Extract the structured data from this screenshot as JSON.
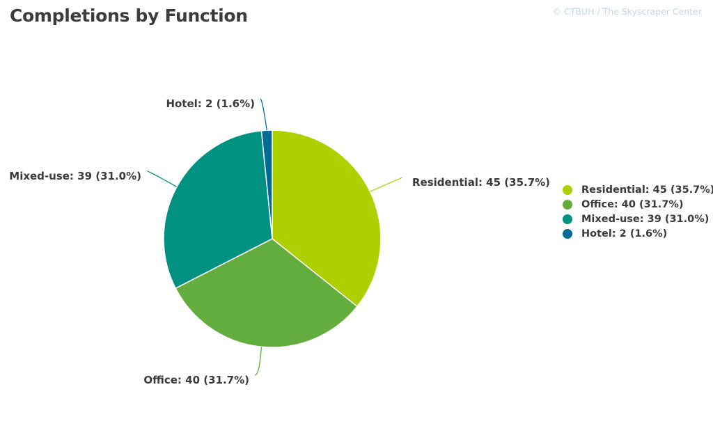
{
  "title": "Completions by Function",
  "credit": "© CTBUH / The Skyscraper Center",
  "chart_data": {
    "type": "pie",
    "title": "Completions by Function",
    "slices": [
      {
        "name": "Residential",
        "value": 45,
        "percent": 35.7,
        "label": "Residential: 45 (35.7%)",
        "color": "#aed000"
      },
      {
        "name": "Office",
        "value": 40,
        "percent": 31.7,
        "label": "Office: 40 (31.7%)",
        "color": "#63ad3e"
      },
      {
        "name": "Mixed-use",
        "value": 39,
        "percent": 31.0,
        "label": "Mixed-use: 39 (31.0%)",
        "color": "#009180"
      },
      {
        "name": "Hotel",
        "value": 2,
        "percent": 1.6,
        "label": "Hotel: 2 (1.6%)",
        "color": "#006b94"
      }
    ],
    "legend_position": "right"
  }
}
